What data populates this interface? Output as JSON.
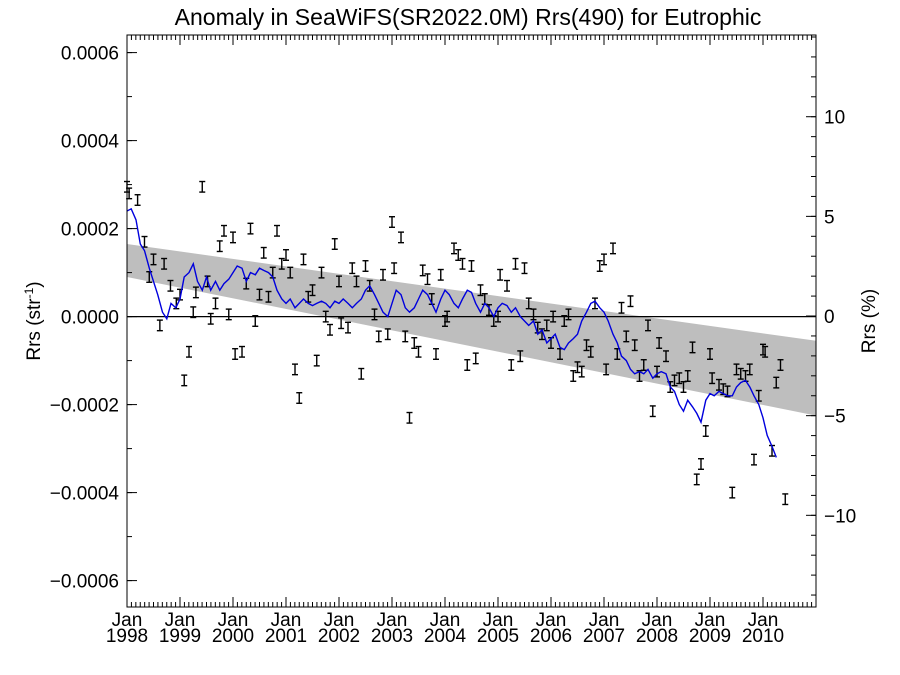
{
  "chart_data": {
    "type": "scatter",
    "title": "Anomaly in SeaWiFS(SR2022.0M) Rrs(490) for Eutrophic",
    "ylabel_left": "Rrs (str",
    "ylabel_left_sup": "-1",
    "ylabel_left_close": ")",
    "ylabel_right": "Rrs (%)",
    "xlim": [
      1998.0,
      2011.0
    ],
    "ylim_left": [
      -0.00066,
      0.00064
    ],
    "ylim_right": [
      -14.6,
      14.1
    ],
    "y_ticks_left": [
      -0.0006,
      -0.0004,
      -0.0002,
      0.0,
      0.0002,
      0.0004,
      0.0006
    ],
    "y_tick_labels_left": [
      "−0.0006",
      "−0.0004",
      "−0.0002",
      "0.0000",
      "0.0002",
      "0.0004",
      "0.0006"
    ],
    "y_ticks_right": [
      -10,
      -5,
      0,
      5,
      10
    ],
    "y_tick_labels_right": [
      "−10",
      "−5",
      "0",
      "5",
      "10"
    ],
    "x_ticks": [
      {
        "pos": 1998.0,
        "month": "Jan",
        "year": "1998"
      },
      {
        "pos": 1999.0,
        "month": "Jan",
        "year": "1999"
      },
      {
        "pos": 2000.0,
        "month": "Jan",
        "year": "2000"
      },
      {
        "pos": 2001.0,
        "month": "Jan",
        "year": "2001"
      },
      {
        "pos": 2002.0,
        "month": "Jan",
        "year": "2002"
      },
      {
        "pos": 2003.0,
        "month": "Jan",
        "year": "2003"
      },
      {
        "pos": 2004.0,
        "month": "Jan",
        "year": "2004"
      },
      {
        "pos": 2005.0,
        "month": "Jan",
        "year": "2005"
      },
      {
        "pos": 2006.0,
        "month": "Jan",
        "year": "2006"
      },
      {
        "pos": 2007.0,
        "month": "Jan",
        "year": "2007"
      },
      {
        "pos": 2008.0,
        "month": "Jan",
        "year": "2008"
      },
      {
        "pos": 2009.0,
        "month": "Jan",
        "year": "2009"
      },
      {
        "pos": 2010.0,
        "month": "Jan",
        "year": "2010"
      }
    ],
    "trend_band": {
      "x": [
        1998.0,
        2011.0
      ],
      "upper": [
        0.000165,
        -5.5e-05
      ],
      "lower": [
        9e-05,
        -0.000225
      ],
      "color": "#bebebe"
    },
    "zero_line": 0.0,
    "points_color": "#000000",
    "points_error": 1.2e-05,
    "points": [
      [
        1998.0,
        0.000295
      ],
      [
        1998.04,
        0.00028
      ],
      [
        1998.2,
        0.000265
      ],
      [
        1998.33,
        0.00017
      ],
      [
        1998.42,
        9e-05
      ],
      [
        1998.5,
        0.00013
      ],
      [
        1998.62,
        -2e-05
      ],
      [
        1998.7,
        0.00012
      ],
      [
        1998.82,
        7e-05
      ],
      [
        1998.93,
        3e-05
      ],
      [
        1999.0,
        5e-05
      ],
      [
        1999.08,
        -0.000145
      ],
      [
        1999.17,
        -8e-05
      ],
      [
        1999.25,
        1e-05
      ],
      [
        1999.3,
        5.5e-05
      ],
      [
        1999.42,
        0.000295
      ],
      [
        1999.52,
        8e-05
      ],
      [
        1999.58,
        -5e-06
      ],
      [
        1999.67,
        3e-05
      ],
      [
        1999.75,
        0.00016
      ],
      [
        1999.83,
        0.000195
      ],
      [
        1999.92,
        5e-06
      ],
      [
        2000.0,
        0.00018
      ],
      [
        2000.04,
        -8.5e-05
      ],
      [
        2000.17,
        -8e-05
      ],
      [
        2000.25,
        7.5e-05
      ],
      [
        2000.33,
        0.0002
      ],
      [
        2000.42,
        -1e-05
      ],
      [
        2000.5,
        5e-05
      ],
      [
        2000.58,
        0.000145
      ],
      [
        2000.67,
        4.5e-05
      ],
      [
        2000.75,
        0.0001
      ],
      [
        2000.83,
        0.000195
      ],
      [
        2000.92,
        0.00012
      ],
      [
        2001.0,
        0.00014
      ],
      [
        2001.08,
        0.0001
      ],
      [
        2001.17,
        -0.00012
      ],
      [
        2001.25,
        -0.000185
      ],
      [
        2001.33,
        0.00013
      ],
      [
        2001.42,
        4.5e-05
      ],
      [
        2001.5,
        6e-05
      ],
      [
        2001.58,
        -0.0001
      ],
      [
        2001.67,
        0.0001
      ],
      [
        2001.75,
        0.0
      ],
      [
        2001.83,
        -3e-05
      ],
      [
        2001.92,
        0.000165
      ],
      [
        2002.0,
        8e-05
      ],
      [
        2002.04,
        -1.5e-05
      ],
      [
        2002.17,
        -2.5e-05
      ],
      [
        2002.25,
        0.00011
      ],
      [
        2002.33,
        8e-05
      ],
      [
        2002.42,
        -0.00013
      ],
      [
        2002.5,
        0.000115
      ],
      [
        2002.58,
        7e-05
      ],
      [
        2002.67,
        5e-06
      ],
      [
        2002.75,
        -4.5e-05
      ],
      [
        2002.83,
        9.5e-05
      ],
      [
        2002.92,
        -4e-05
      ],
      [
        2003.0,
        0.000215
      ],
      [
        2003.04,
        0.00011
      ],
      [
        2003.17,
        0.00018
      ],
      [
        2003.25,
        -4.5e-05
      ],
      [
        2003.33,
        -0.00023
      ],
      [
        2003.42,
        -6e-05
      ],
      [
        2003.5,
        -8e-05
      ],
      [
        2003.58,
        0.000105
      ],
      [
        2003.67,
        8.5e-05
      ],
      [
        2003.75,
        4e-05
      ],
      [
        2003.83,
        -8.5e-05
      ],
      [
        2003.92,
        9.5e-05
      ],
      [
        2004.0,
        -1e-05
      ],
      [
        2004.04,
        0.0
      ],
      [
        2004.17,
        0.000155
      ],
      [
        2004.25,
        0.00014
      ],
      [
        2004.33,
        0.00012
      ],
      [
        2004.42,
        -0.00011
      ],
      [
        2004.5,
        0.000115
      ],
      [
        2004.58,
        -9.5e-05
      ],
      [
        2004.67,
        6e-05
      ],
      [
        2004.75,
        4e-05
      ],
      [
        2004.83,
        1.5e-05
      ],
      [
        2004.92,
        -1e-05
      ],
      [
        2005.0,
        0.0
      ],
      [
        2005.04,
        9.5e-05
      ],
      [
        2005.17,
        7e-05
      ],
      [
        2005.25,
        -0.00011
      ],
      [
        2005.33,
        0.00012
      ],
      [
        2005.42,
        -9e-05
      ],
      [
        2005.5,
        0.00011
      ],
      [
        2005.58,
        3e-05
      ],
      [
        2005.67,
        5e-06
      ],
      [
        2005.75,
        -2.5e-05
      ],
      [
        2005.83,
        -4e-05
      ],
      [
        2005.92,
        -2e-05
      ],
      [
        2006.0,
        -6e-05
      ],
      [
        2006.04,
        0.0
      ],
      [
        2006.17,
        -8.5e-05
      ],
      [
        2006.25,
        -1e-05
      ],
      [
        2006.33,
        5e-06
      ],
      [
        2006.42,
        -0.000135
      ],
      [
        2006.5,
        -0.000115
      ],
      [
        2006.58,
        -0.000125
      ],
      [
        2006.67,
        -6.5e-05
      ],
      [
        2006.75,
        -8e-05
      ],
      [
        2006.83,
        3e-05
      ],
      [
        2006.92,
        0.000115
      ],
      [
        2007.0,
        0.00013
      ],
      [
        2007.04,
        -0.00012
      ],
      [
        2007.17,
        0.000155
      ],
      [
        2007.25,
        -8.5e-05
      ],
      [
        2007.33,
        2e-05
      ],
      [
        2007.42,
        -4.5e-05
      ],
      [
        2007.5,
        3.5e-05
      ],
      [
        2007.58,
        -6.5e-05
      ],
      [
        2007.67,
        -0.000135
      ],
      [
        2007.75,
        -0.00011
      ],
      [
        2007.83,
        -2e-05
      ],
      [
        2007.92,
        -0.000215
      ],
      [
        2008.0,
        -0.000125
      ],
      [
        2008.04,
        -6e-05
      ],
      [
        2008.17,
        -9e-05
      ],
      [
        2008.25,
        -0.00016
      ],
      [
        2008.33,
        -0.000145
      ],
      [
        2008.42,
        -0.00014
      ],
      [
        2008.5,
        -0.00016
      ],
      [
        2008.58,
        -0.000135
      ],
      [
        2008.67,
        -7e-05
      ],
      [
        2008.75,
        -0.00037
      ],
      [
        2008.83,
        -0.000335
      ],
      [
        2008.92,
        -0.00026
      ],
      [
        2009.0,
        -8.5e-05
      ],
      [
        2009.04,
        -0.00014
      ],
      [
        2009.17,
        -0.000155
      ],
      [
        2009.25,
        -0.000165
      ],
      [
        2009.33,
        -0.00017
      ],
      [
        2009.42,
        -0.0004
      ],
      [
        2009.5,
        -0.00012
      ],
      [
        2009.58,
        -0.00013
      ],
      [
        2009.67,
        -0.000135
      ],
      [
        2009.75,
        -0.00012
      ],
      [
        2009.83,
        -0.000325
      ],
      [
        2009.92,
        -0.00018
      ],
      [
        2010.0,
        -7.5e-05
      ],
      [
        2010.04,
        -8e-05
      ],
      [
        2010.17,
        -0.000305
      ],
      [
        2010.25,
        -0.00015
      ],
      [
        2010.33,
        -0.00011
      ],
      [
        2010.42,
        -0.000415
      ]
    ],
    "running_mean_color": "#0000dd",
    "running_mean": [
      [
        1998.0,
        0.00024
      ],
      [
        1998.08,
        0.000245
      ],
      [
        1998.17,
        0.00022
      ],
      [
        1998.25,
        0.000165
      ],
      [
        1998.33,
        0.00015
      ],
      [
        1998.42,
        0.00011
      ],
      [
        1998.5,
        8e-05
      ],
      [
        1998.58,
        5e-05
      ],
      [
        1998.67,
        1e-05
      ],
      [
        1998.75,
        -5e-06
      ],
      [
        1998.83,
        3e-05
      ],
      [
        1998.92,
        2e-05
      ],
      [
        1999.0,
        4e-05
      ],
      [
        1999.08,
        9e-05
      ],
      [
        1999.17,
        0.0001
      ],
      [
        1999.25,
        0.00012
      ],
      [
        1999.33,
        8e-05
      ],
      [
        1999.42,
        6e-05
      ],
      [
        1999.5,
        9e-05
      ],
      [
        1999.58,
        6e-05
      ],
      [
        1999.67,
        8e-05
      ],
      [
        1999.75,
        6e-05
      ],
      [
        1999.83,
        7.5e-05
      ],
      [
        1999.92,
        8.5e-05
      ],
      [
        2000.0,
        0.0001
      ],
      [
        2000.08,
        0.000115
      ],
      [
        2000.17,
        0.00011
      ],
      [
        2000.25,
        8e-05
      ],
      [
        2000.33,
        0.0001
      ],
      [
        2000.42,
        9.5e-05
      ],
      [
        2000.5,
        0.00011
      ],
      [
        2000.58,
        0.000105
      ],
      [
        2000.67,
        0.0001
      ],
      [
        2000.75,
        9e-05
      ],
      [
        2000.83,
        6e-05
      ],
      [
        2000.92,
        4e-05
      ],
      [
        2001.0,
        3e-05
      ],
      [
        2001.08,
        4e-05
      ],
      [
        2001.17,
        2e-05
      ],
      [
        2001.25,
        3e-05
      ],
      [
        2001.33,
        4e-05
      ],
      [
        2001.42,
        3e-05
      ],
      [
        2001.5,
        2.5e-05
      ],
      [
        2001.58,
        3e-05
      ],
      [
        2001.67,
        3.5e-05
      ],
      [
        2001.75,
        3e-05
      ],
      [
        2001.83,
        2e-05
      ],
      [
        2001.92,
        3.5e-05
      ],
      [
        2002.0,
        3e-05
      ],
      [
        2002.08,
        4e-05
      ],
      [
        2002.17,
        3e-05
      ],
      [
        2002.25,
        2e-05
      ],
      [
        2002.33,
        3e-05
      ],
      [
        2002.42,
        4e-05
      ],
      [
        2002.5,
        6e-05
      ],
      [
        2002.58,
        7e-05
      ],
      [
        2002.67,
        5e-05
      ],
      [
        2002.75,
        3e-05
      ],
      [
        2002.83,
        1e-05
      ],
      [
        2002.92,
        0.0
      ],
      [
        2003.0,
        3e-05
      ],
      [
        2003.08,
        6e-05
      ],
      [
        2003.17,
        5e-05
      ],
      [
        2003.25,
        2e-05
      ],
      [
        2003.33,
        1e-05
      ],
      [
        2003.42,
        2e-05
      ],
      [
        2003.5,
        4e-05
      ],
      [
        2003.58,
        6e-05
      ],
      [
        2003.67,
        5e-05
      ],
      [
        2003.75,
        3e-05
      ],
      [
        2003.83,
        1e-05
      ],
      [
        2003.92,
        4e-05
      ],
      [
        2004.0,
        6e-05
      ],
      [
        2004.08,
        5e-05
      ],
      [
        2004.17,
        3e-05
      ],
      [
        2004.25,
        2e-05
      ],
      [
        2004.33,
        4e-05
      ],
      [
        2004.42,
        6e-05
      ],
      [
        2004.5,
        5.5e-05
      ],
      [
        2004.58,
        3e-05
      ],
      [
        2004.67,
        1e-05
      ],
      [
        2004.75,
        3e-05
      ],
      [
        2004.83,
        2e-05
      ],
      [
        2004.92,
        0.0
      ],
      [
        2005.0,
        2e-05
      ],
      [
        2005.08,
        3e-05
      ],
      [
        2005.17,
        2.5e-05
      ],
      [
        2005.25,
        1e-05
      ],
      [
        2005.33,
        2e-05
      ],
      [
        2005.42,
        0.0
      ],
      [
        2005.5,
        -1e-05
      ],
      [
        2005.58,
        -2e-05
      ],
      [
        2005.67,
        -1e-05
      ],
      [
        2005.75,
        -4e-05
      ],
      [
        2005.83,
        -3e-05
      ],
      [
        2005.92,
        -6e-05
      ],
      [
        2006.0,
        -5e-05
      ],
      [
        2006.08,
        -4e-05
      ],
      [
        2006.17,
        -7e-05
      ],
      [
        2006.25,
        -7.5e-05
      ],
      [
        2006.33,
        -6e-05
      ],
      [
        2006.42,
        -5e-05
      ],
      [
        2006.5,
        -4e-05
      ],
      [
        2006.58,
        -1e-05
      ],
      [
        2006.67,
        1e-05
      ],
      [
        2006.75,
        3e-05
      ],
      [
        2006.83,
        3.5e-05
      ],
      [
        2006.92,
        2e-05
      ],
      [
        2007.0,
        1e-05
      ],
      [
        2007.08,
        -1e-05
      ],
      [
        2007.17,
        -4e-05
      ],
      [
        2007.25,
        -6e-05
      ],
      [
        2007.33,
        -9e-05
      ],
      [
        2007.42,
        -0.0001
      ],
      [
        2007.5,
        -0.00012
      ],
      [
        2007.58,
        -0.00013
      ],
      [
        2007.67,
        -0.000125
      ],
      [
        2007.75,
        -0.00013
      ],
      [
        2007.83,
        -0.00012
      ],
      [
        2007.92,
        -0.00014
      ],
      [
        2008.0,
        -0.00013
      ],
      [
        2008.08,
        -0.000125
      ],
      [
        2008.17,
        -0.00013
      ],
      [
        2008.25,
        -0.00016
      ],
      [
        2008.33,
        -0.00017
      ],
      [
        2008.42,
        -0.0002
      ],
      [
        2008.5,
        -0.000215
      ],
      [
        2008.58,
        -0.00019
      ],
      [
        2008.67,
        -0.000205
      ],
      [
        2008.75,
        -0.00022
      ],
      [
        2008.83,
        -0.00024
      ],
      [
        2008.92,
        -0.00019
      ],
      [
        2009.0,
        -0.000175
      ],
      [
        2009.08,
        -0.00018
      ],
      [
        2009.17,
        -0.00017
      ],
      [
        2009.25,
        -0.000175
      ],
      [
        2009.33,
        -0.00018
      ],
      [
        2009.42,
        -0.00018
      ],
      [
        2009.5,
        -0.00016
      ],
      [
        2009.58,
        -0.00015
      ],
      [
        2009.67,
        -0.000145
      ],
      [
        2009.75,
        -0.00016
      ],
      [
        2009.83,
        -0.00018
      ],
      [
        2009.92,
        -0.0002
      ],
      [
        2010.0,
        -0.00023
      ],
      [
        2010.08,
        -0.00027
      ],
      [
        2010.17,
        -0.000295
      ],
      [
        2010.25,
        -0.00032
      ]
    ],
    "legend": "none",
    "grid": false
  }
}
